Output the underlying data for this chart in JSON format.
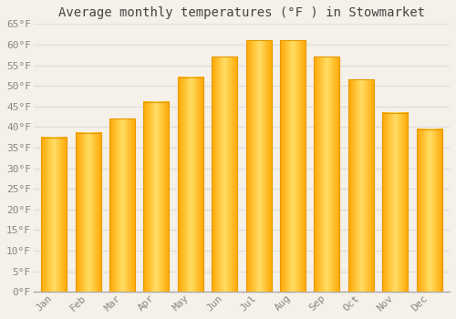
{
  "title": "Average monthly temperatures (°F ) in Stowmarket",
  "months": [
    "Jan",
    "Feb",
    "Mar",
    "Apr",
    "May",
    "Jun",
    "Jul",
    "Aug",
    "Sep",
    "Oct",
    "Nov",
    "Dec"
  ],
  "values": [
    37.5,
    38.5,
    42.0,
    46.0,
    52.0,
    57.0,
    61.0,
    61.0,
    57.0,
    51.5,
    43.5,
    39.5
  ],
  "bar_color_top": "#FFD966",
  "bar_color_bottom": "#FFA500",
  "bar_color_edge": "#E69900",
  "ylim": [
    0,
    65
  ],
  "yticks": [
    0,
    5,
    10,
    15,
    20,
    25,
    30,
    35,
    40,
    45,
    50,
    55,
    60,
    65
  ],
  "background_color": "#F5F0E8",
  "plot_bg_color": "#F5F0E8",
  "grid_color": "#DDDDDD",
  "title_fontsize": 10,
  "tick_fontsize": 8,
  "font_family": "monospace"
}
